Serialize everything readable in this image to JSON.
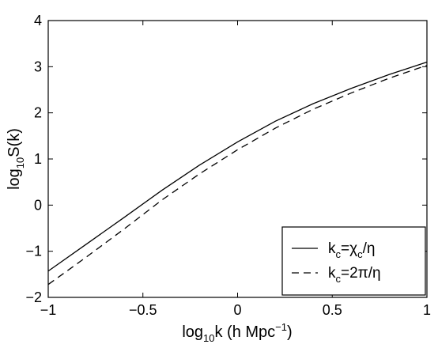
{
  "chart_data": {
    "type": "line",
    "title": "",
    "xlabel": {
      "main": "log",
      "sub": "10",
      "rest": "k (h Mpc",
      "sup": "−1",
      "end": ")"
    },
    "ylabel": {
      "main": "log",
      "sub": "10",
      "rest": "S(k)"
    },
    "xlim": [
      -1,
      1
    ],
    "ylim": [
      -2,
      4
    ],
    "xticks": [
      -1,
      -0.5,
      0,
      0.5,
      1
    ],
    "xtick_labels": [
      "−1",
      "−0.5",
      "0",
      "0.5",
      "1"
    ],
    "yticks": [
      -2,
      -1,
      0,
      1,
      2,
      3,
      4
    ],
    "ytick_labels": [
      "−2",
      "−1",
      "0",
      "1",
      "2",
      "3",
      "4"
    ],
    "grid": false,
    "legend_position": "bottom-right",
    "series": [
      {
        "legend": {
          "k": "k",
          "ksub": "c",
          "eq": "=",
          "chi": "χ",
          "chisub": "c",
          "tail": "/η"
        },
        "style": "solid",
        "color": "#000000",
        "x": [
          -1,
          -0.8,
          -0.6,
          -0.4,
          -0.2,
          0,
          0.2,
          0.4,
          0.6,
          0.8,
          1
        ],
        "y": [
          -1.43,
          -0.85,
          -0.27,
          0.32,
          0.87,
          1.37,
          1.82,
          2.2,
          2.53,
          2.83,
          3.1
        ]
      },
      {
        "legend": {
          "k": "k",
          "ksub": "c",
          "rest": "=2π/η"
        },
        "style": "dashed",
        "color": "#000000",
        "x": [
          -1,
          -0.8,
          -0.6,
          -0.4,
          -0.2,
          0,
          0.2,
          0.4,
          0.6,
          0.8,
          1
        ],
        "y": [
          -1.72,
          -1.13,
          -0.52,
          0.11,
          0.68,
          1.2,
          1.67,
          2.08,
          2.43,
          2.75,
          3.03
        ]
      }
    ]
  }
}
